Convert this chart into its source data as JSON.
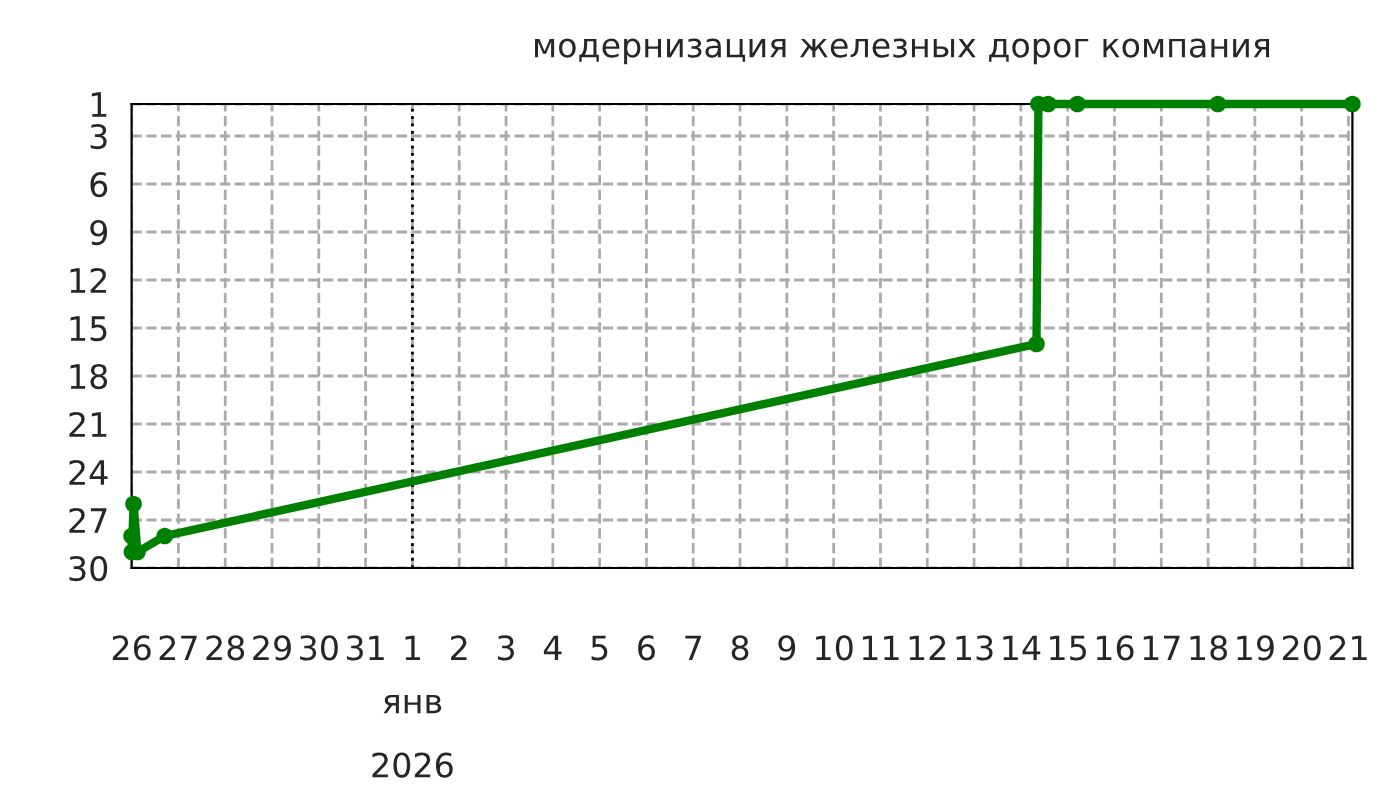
{
  "chart_data": {
    "type": "line",
    "title": "модернизация железных дорог компания",
    "x": [
      "2025-12-26T00:00",
      "2025-12-26T00:10",
      "2025-12-26T01:00",
      "2025-12-26T03:00",
      "2025-12-26T17:00",
      "2026-01-14T08:00",
      "2026-01-14T09:00",
      "2026-01-14T14:00",
      "2026-01-15T05:00",
      "2026-01-18T05:00",
      "2026-01-21T02:00"
    ],
    "series": [
      {
        "color": "#008000",
        "values": [
          28,
          29,
          26,
          29,
          28,
          16,
          1,
          1,
          1,
          1,
          1
        ]
      }
    ],
    "xlim": [
      "2025-12-26T00:00",
      "2026-01-21T02:00"
    ],
    "xticks": [
      {
        "value": "2025-12-26",
        "label": "26"
      },
      {
        "value": "2025-12-27",
        "label": "27"
      },
      {
        "value": "2025-12-28",
        "label": "28"
      },
      {
        "value": "2025-12-29",
        "label": "29"
      },
      {
        "value": "2025-12-30",
        "label": "30"
      },
      {
        "value": "2025-12-31",
        "label": "31"
      },
      {
        "value": "2026-01-01",
        "label": "1"
      },
      {
        "value": "2026-01-02",
        "label": "2"
      },
      {
        "value": "2026-01-03",
        "label": "3"
      },
      {
        "value": "2026-01-04",
        "label": "4"
      },
      {
        "value": "2026-01-05",
        "label": "5"
      },
      {
        "value": "2026-01-06",
        "label": "6"
      },
      {
        "value": "2026-01-07",
        "label": "7"
      },
      {
        "value": "2026-01-08",
        "label": "8"
      },
      {
        "value": "2026-01-09",
        "label": "9"
      },
      {
        "value": "2026-01-10",
        "label": "10"
      },
      {
        "value": "2026-01-11",
        "label": "11"
      },
      {
        "value": "2026-01-12",
        "label": "12"
      },
      {
        "value": "2026-01-13",
        "label": "13"
      },
      {
        "value": "2026-01-14",
        "label": "14"
      },
      {
        "value": "2026-01-15",
        "label": "15"
      },
      {
        "value": "2026-01-16",
        "label": "16"
      },
      {
        "value": "2026-01-17",
        "label": "17"
      },
      {
        "value": "2026-01-18",
        "label": "18"
      },
      {
        "value": "2026-01-19",
        "label": "19"
      },
      {
        "value": "2026-01-20",
        "label": "20"
      },
      {
        "value": "2026-01-21",
        "label": "21"
      }
    ],
    "ylim": [
      30,
      1
    ],
    "yticks": [
      1,
      3,
      6,
      9,
      12,
      15,
      18,
      21,
      24,
      27,
      30
    ],
    "ref_lines": [
      {
        "axis": "x",
        "value": "2026-01-01",
        "color": "#000000",
        "line_style": "dotted"
      }
    ],
    "annotations": [
      "янв",
      "2026"
    ],
    "grid": true,
    "marker": "circle",
    "line_style": "solid"
  }
}
